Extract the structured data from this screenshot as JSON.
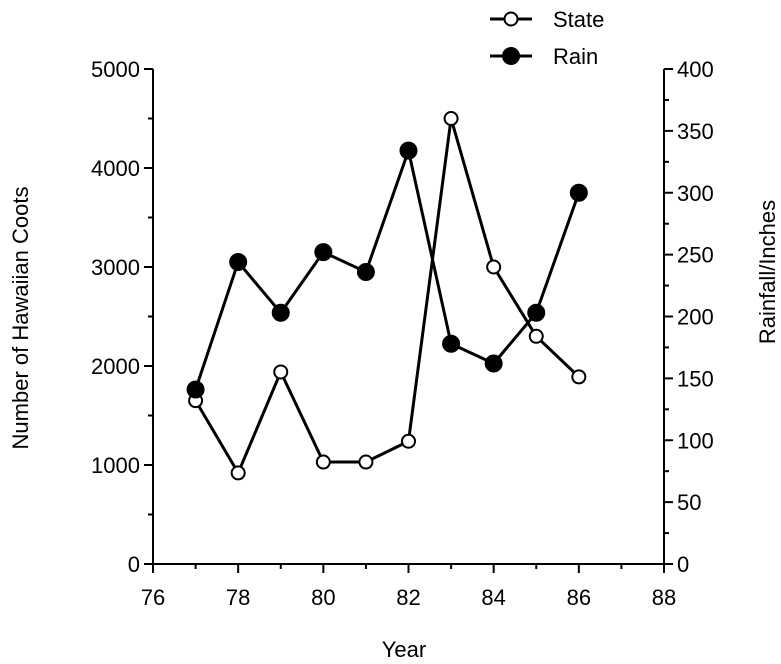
{
  "chart_data": {
    "type": "line",
    "xlabel": "Year",
    "ylabel_left": "Number of Hawaiian Coots",
    "ylabel_right": "Rainfall/Inches",
    "x_ticks": [
      "76",
      "78",
      "80",
      "82",
      "84",
      "86",
      "88"
    ],
    "y_left_ticks": [
      "0",
      "1000",
      "2000",
      "3000",
      "4000",
      "5000"
    ],
    "y_right_ticks": [
      "0",
      "50",
      "100",
      "150",
      "200",
      "250",
      "300",
      "350",
      "400"
    ],
    "xlim": [
      76,
      88
    ],
    "ylim_left": [
      0,
      5000
    ],
    "ylim_right": [
      0,
      400
    ],
    "legend_position": "top-right",
    "series": [
      {
        "name": "State",
        "axis": "left",
        "marker": "open-circle",
        "x": [
          77,
          78,
          79,
          80,
          81,
          82,
          83,
          84,
          85,
          86
        ],
        "values": [
          1650,
          920,
          1940,
          1030,
          1030,
          1240,
          4500,
          3000,
          2300,
          1890
        ]
      },
      {
        "name": "Rain",
        "axis": "right",
        "marker": "filled-circle",
        "x": [
          77,
          78,
          79,
          80,
          81,
          82,
          83,
          84,
          85,
          86
        ],
        "values": [
          141,
          244,
          203,
          252,
          236,
          334,
          178,
          162,
          203,
          300
        ]
      }
    ]
  }
}
